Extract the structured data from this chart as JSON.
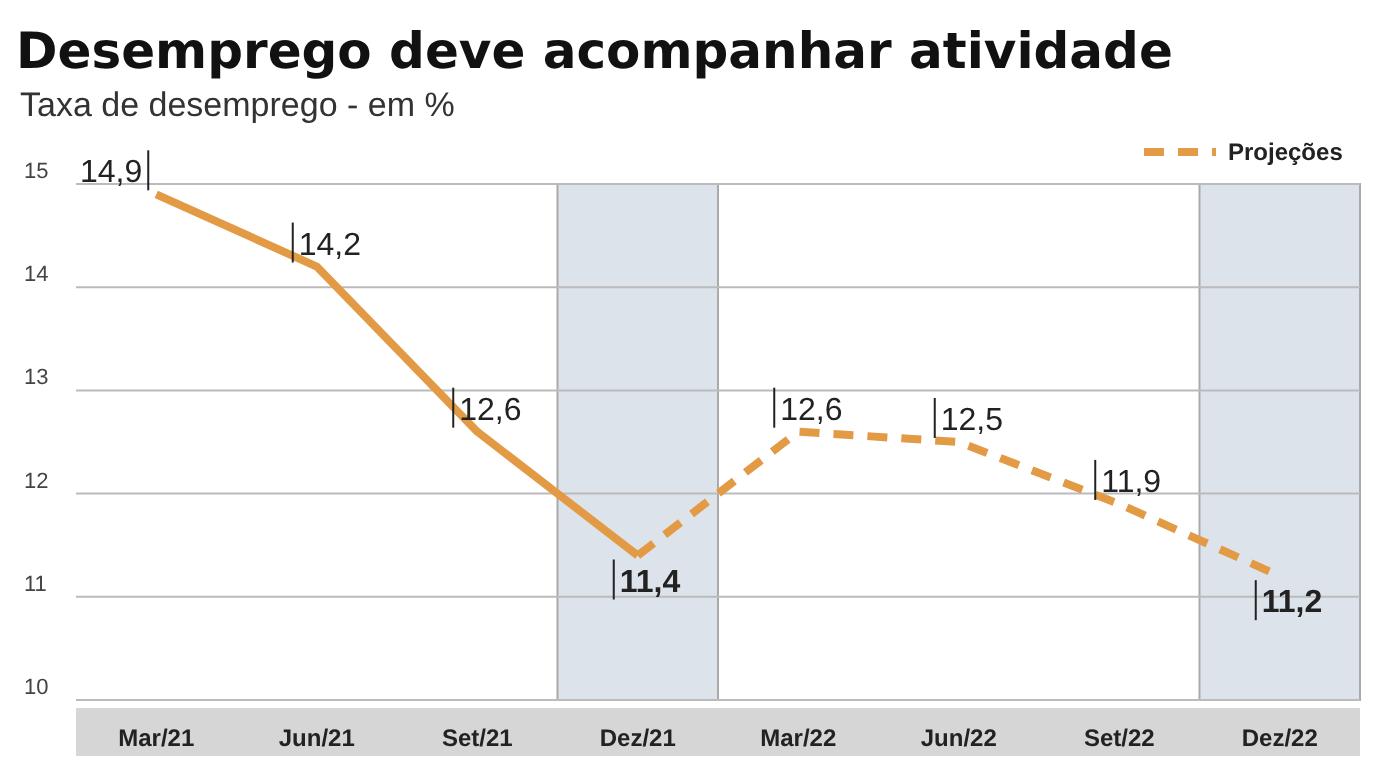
{
  "chart_data": {
    "type": "line",
    "title": "Desemprego deve acompanhar atividade",
    "subtitle": "Taxa de desemprego - em %",
    "categories": [
      "Mar/21",
      "Jun/21",
      "Set/21",
      "Dez/21",
      "Mar/22",
      "Jun/22",
      "Set/22",
      "Dez/22"
    ],
    "series": [
      {
        "color": "#e39a45",
        "line_style": "solid",
        "values": [
          14.9,
          14.2,
          12.6,
          11.4,
          null,
          null,
          null,
          null
        ],
        "value_labels": [
          "14,9",
          "14,2",
          "12,6",
          "11,4",
          null,
          null,
          null,
          null
        ]
      },
      {
        "name": "Projeções",
        "color": "#e39a45",
        "line_style": "dashed",
        "values": [
          null,
          null,
          null,
          11.4,
          12.6,
          12.5,
          11.9,
          11.2
        ],
        "value_labels": [
          null,
          null,
          null,
          null,
          "12,6",
          "12,5",
          "11,9",
          "11,2"
        ]
      }
    ],
    "bands": [
      {
        "axis": "x",
        "from": "Dez/21",
        "to": "Dez/21",
        "color": "#dde3ea"
      },
      {
        "axis": "x",
        "from": "Dez/22",
        "to": "Dez/22",
        "color": "#dde3ea"
      }
    ],
    "ylim": [
      10,
      15
    ],
    "yticks": [
      10,
      11,
      12,
      13,
      14,
      15
    ],
    "grid": "y",
    "legend": "top right",
    "marker": "none"
  }
}
